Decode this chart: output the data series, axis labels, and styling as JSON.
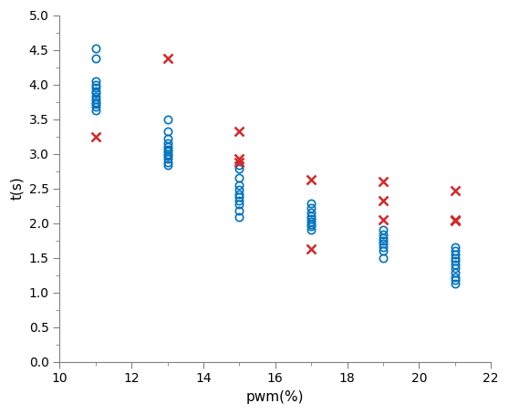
{
  "title": "",
  "xlabel": "pwm(%)",
  "ylabel": "t(s)",
  "xlim": [
    10,
    22
  ],
  "ylim": [
    0,
    5
  ],
  "xticks": [
    10,
    12,
    14,
    16,
    18,
    20,
    22
  ],
  "yticks": [
    0,
    0.5,
    1,
    1.5,
    2,
    2.5,
    3,
    3.5,
    4,
    4.5,
    5
  ],
  "blue_x": [
    11,
    11,
    11,
    11,
    11,
    11,
    11,
    11,
    11,
    11,
    11,
    11,
    11,
    13,
    13,
    13,
    13,
    13,
    13,
    13,
    13,
    13,
    13,
    13,
    13,
    15,
    15,
    15,
    15,
    15,
    15,
    15,
    15,
    15,
    15,
    15,
    17,
    17,
    17,
    17,
    17,
    17,
    17,
    17,
    17,
    19,
    19,
    19,
    19,
    19,
    19,
    19,
    19,
    21,
    21,
    21,
    21,
    21,
    21,
    21,
    21,
    21,
    21,
    21
  ],
  "blue_y": [
    4.52,
    4.38,
    4.05,
    4.0,
    3.95,
    3.9,
    3.87,
    3.83,
    3.78,
    3.75,
    3.72,
    3.68,
    3.62,
    3.5,
    3.32,
    3.22,
    3.15,
    3.1,
    3.06,
    3.03,
    3.0,
    2.97,
    2.93,
    2.88,
    2.83,
    2.83,
    2.78,
    2.65,
    2.55,
    2.48,
    2.42,
    2.37,
    2.32,
    2.27,
    2.18,
    2.08,
    2.28,
    2.22,
    2.15,
    2.1,
    2.06,
    2.02,
    1.98,
    1.95,
    1.9,
    1.9,
    1.83,
    1.78,
    1.74,
    1.7,
    1.65,
    1.6,
    1.5,
    1.65,
    1.6,
    1.55,
    1.5,
    1.45,
    1.4,
    1.35,
    1.28,
    1.22,
    1.18,
    1.12
  ],
  "red_x": [
    11,
    13,
    15,
    15,
    15,
    17,
    17,
    19,
    19,
    19,
    21,
    21,
    21
  ],
  "red_y": [
    3.25,
    4.38,
    3.33,
    2.93,
    2.87,
    2.62,
    1.62,
    2.6,
    2.32,
    2.05,
    2.47,
    2.05,
    2.04
  ],
  "blue_color": "#0072BD",
  "red_color": "#D62728",
  "marker_size_blue": 6,
  "marker_size_red": 7,
  "background_color": "#ffffff",
  "tick_color": "#808080",
  "spine_color": "#808080",
  "label_fontsize": 11,
  "tick_labelsize": 10
}
